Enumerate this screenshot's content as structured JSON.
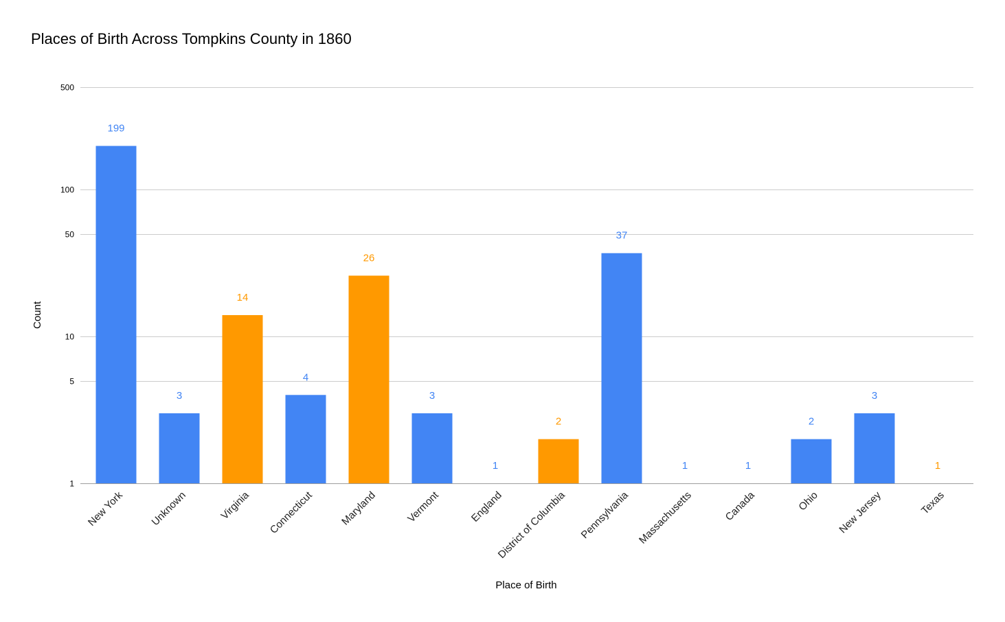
{
  "chart_data": {
    "type": "bar",
    "title": "Places of Birth Across Tompkins County in 1860",
    "xlabel": "Place of Birth",
    "ylabel": "Count",
    "yscale": "log",
    "ylim": [
      1,
      500
    ],
    "yticks": [
      1,
      5,
      10,
      50,
      100,
      500
    ],
    "grid": true,
    "categories": [
      "New York",
      "Unknown",
      "Virginia",
      "Connecticut",
      "Maryland",
      "Vermont",
      "England",
      "District of Columbia",
      "Pennsylvania",
      "Massachusetts",
      "Canada",
      "Ohio",
      "New Jersey",
      "Texas"
    ],
    "values": [
      199,
      3,
      14,
      4,
      26,
      3,
      1,
      2,
      37,
      1,
      1,
      2,
      3,
      1
    ],
    "bar_colors": [
      "#4285f4",
      "#4285f4",
      "#ff9900",
      "#4285f4",
      "#ff9900",
      "#4285f4",
      "#4285f4",
      "#ff9900",
      "#4285f4",
      "#4285f4",
      "#4285f4",
      "#4285f4",
      "#4285f4",
      "#ff9900"
    ],
    "data_labels": [
      "199",
      "3",
      "14",
      "4",
      "26",
      "3",
      "1",
      "2",
      "37",
      "1",
      "1",
      "2",
      "3",
      "1"
    ]
  }
}
